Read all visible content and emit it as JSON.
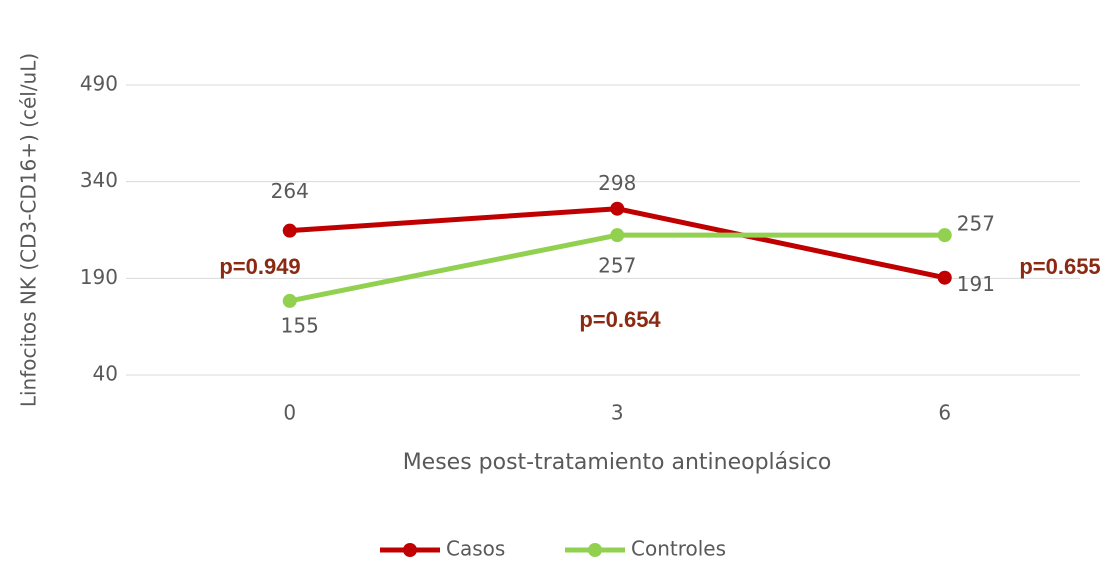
{
  "chart_data": {
    "type": "line",
    "y_label": "Linfocitos NK (CD3-CD16+) (cél/uL)",
    "x_label": "Meses post-tratamiento antineoplásico",
    "categories": [
      "0",
      "3",
      "6"
    ],
    "series": [
      {
        "name": "Casos",
        "color": "#c00000",
        "values": [
          264,
          298,
          191
        ]
      },
      {
        "name": "Controles",
        "color": "#92d050",
        "values": [
          155,
          257,
          257
        ]
      }
    ],
    "ylim": [
      40,
      490
    ],
    "yticks": [
      40,
      190,
      340,
      490
    ],
    "grid": true,
    "annotations": [
      "p=0.949",
      "p=0.654",
      "p=0.655"
    ],
    "legend": "bottom"
  }
}
